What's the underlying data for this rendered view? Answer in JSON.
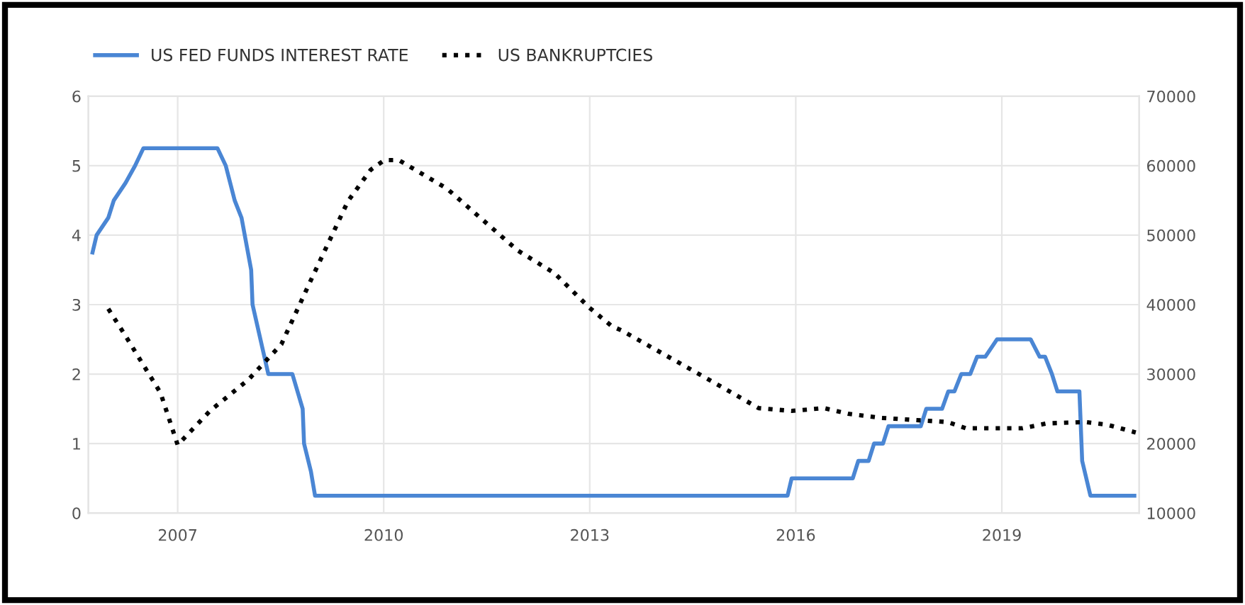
{
  "chart_data": {
    "type": "line",
    "xlim": [
      2005.7,
      2021.0
    ],
    "xticks": [
      {
        "value": 2007,
        "label": "2007"
      },
      {
        "value": 2010,
        "label": "2010"
      },
      {
        "value": 2013,
        "label": "2013"
      },
      {
        "value": 2016,
        "label": "2016"
      },
      {
        "value": 2019,
        "label": "2019"
      }
    ],
    "ylim": [
      0,
      6
    ],
    "yticks": [
      0,
      1,
      2,
      3,
      4,
      5,
      6
    ],
    "y2lim": [
      10000,
      70000
    ],
    "y2ticks": [
      10000,
      20000,
      30000,
      40000,
      50000,
      60000,
      70000
    ],
    "grid": true,
    "legend": "top left",
    "series": [
      {
        "name": "US FED FUNDS INTEREST RATE",
        "color": "#4a86d4",
        "line_style": "solid",
        "x": [
          2005.76,
          2005.82,
          2005.99,
          2006.07,
          2006.24,
          2006.38,
          2006.5,
          2007.58,
          2007.7,
          2007.83,
          2007.93,
          2008.07,
          2008.09,
          2008.32,
          2008.67,
          2008.82,
          2008.84,
          2008.94,
          2009.0,
          2015.88,
          2015.94,
          2016.83,
          2016.91,
          2017.06,
          2017.14,
          2017.27,
          2017.35,
          2017.82,
          2017.9,
          2018.13,
          2018.22,
          2018.31,
          2018.41,
          2018.54,
          2018.64,
          2018.76,
          2018.93,
          2019.42,
          2019.55,
          2019.63,
          2019.73,
          2019.81,
          2020.13,
          2020.17,
          2020.29,
          2020.93
        ],
        "values": [
          3.75,
          4.0,
          4.25,
          4.5,
          4.75,
          5.0,
          5.25,
          5.25,
          5.0,
          4.5,
          4.25,
          3.5,
          3.0,
          2.0,
          2.0,
          1.5,
          1.0,
          0.6,
          0.25,
          0.25,
          0.5,
          0.5,
          0.75,
          0.75,
          1.0,
          1.0,
          1.25,
          1.25,
          1.5,
          1.5,
          1.75,
          1.75,
          2.0,
          2.0,
          2.25,
          2.25,
          2.5,
          2.5,
          2.25,
          2.25,
          2.0,
          1.75,
          1.75,
          0.75,
          0.25,
          0.25
        ]
      },
      {
        "name": "US BANKRUPTCIES",
        "color": "#000000",
        "line_style": "dotted",
        "axis": "y2",
        "x": [
          2005.99,
          2006.24,
          2006.75,
          2007.0,
          2007.47,
          2008.03,
          2008.51,
          2008.92,
          2009.48,
          2009.81,
          2010.01,
          2010.22,
          2010.92,
          2011.95,
          2012.49,
          2012.99,
          2013.32,
          2013.46,
          2014.7,
          2015.46,
          2015.94,
          2016.41,
          2016.76,
          2017.24,
          2018.21,
          2018.48,
          2019.3,
          2019.65,
          2020.21,
          2020.54,
          2020.95
        ],
        "values": [
          39400,
          35500,
          27300,
          19800,
          24700,
          29200,
          34300,
          43100,
          54900,
          59400,
          60800,
          60800,
          56700,
          47800,
          44500,
          39600,
          36900,
          36300,
          29400,
          25100,
          24700,
          25100,
          24300,
          23700,
          23100,
          22200,
          22200,
          22900,
          23100,
          22700,
          21600
        ]
      }
    ]
  }
}
